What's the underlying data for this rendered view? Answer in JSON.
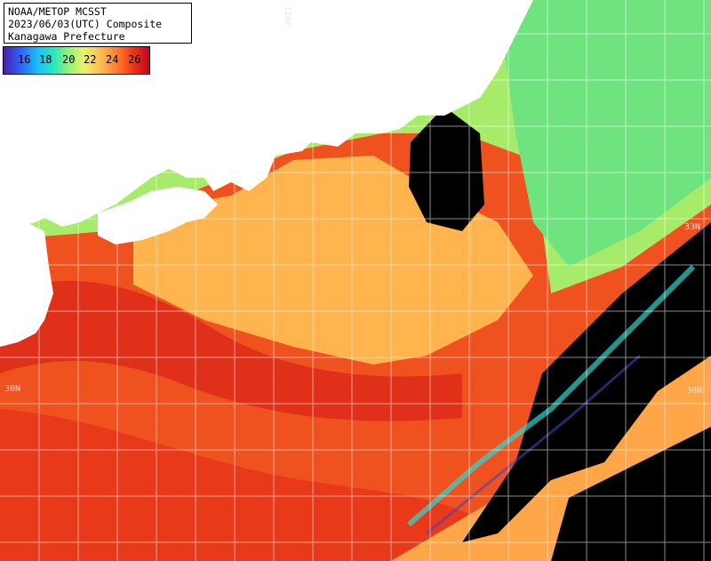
{
  "title": {
    "line1": "NOAA/METOP MCSST",
    "line2": "2023/06/03(UTC) Composite",
    "line3": "Kanagawa Prefecture"
  },
  "legend": {
    "labels": [
      "16",
      "18",
      "20",
      "22",
      "24",
      "26"
    ]
  },
  "grid_labels": {
    "lat_30_left": "30N",
    "lat_30_right": "30N",
    "lat_33_right": "33N",
    "lon_136_top": "136E"
  },
  "colors": {
    "land": "#ffffff",
    "cloud": "#000000",
    "grid": "#ffffff",
    "sst_cold": "#4b1fa8",
    "sst_mid": "#8cf27a",
    "sst_warm": "#f23a16"
  }
}
